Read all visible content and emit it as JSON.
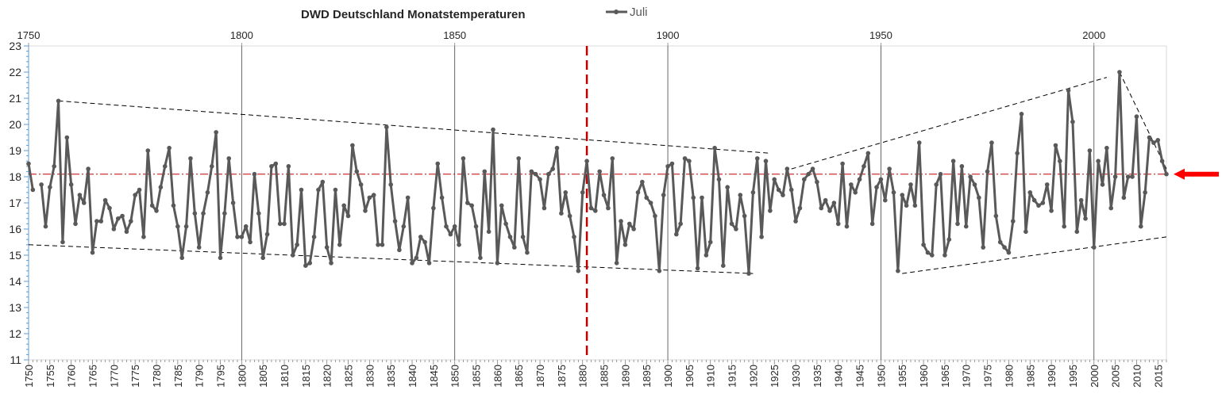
{
  "chart_data": {
    "type": "line",
    "title": "DWD Deutschland Monatstemperaturen",
    "legend": {
      "label": "Juli",
      "placement": "top"
    },
    "xlim": [
      1750,
      2017
    ],
    "ylim": [
      11,
      23
    ],
    "yticks": [
      11,
      12,
      13,
      14,
      15,
      16,
      17,
      18,
      19,
      20,
      21,
      22,
      23
    ],
    "xticks": [
      1750,
      1755,
      1760,
      1765,
      1770,
      1775,
      1780,
      1785,
      1790,
      1795,
      1800,
      1805,
      1810,
      1815,
      1820,
      1825,
      1830,
      1835,
      1840,
      1845,
      1850,
      1855,
      1860,
      1865,
      1870,
      1875,
      1880,
      1885,
      1890,
      1895,
      1900,
      1905,
      1910,
      1915,
      1920,
      1925,
      1930,
      1935,
      1940,
      1945,
      1950,
      1955,
      1960,
      1965,
      1970,
      1975,
      1980,
      1985,
      1990,
      1995,
      2000,
      2005,
      2010,
      2015
    ],
    "top_axis_ticks": [
      1750,
      1800,
      1850,
      1900,
      1950,
      2000
    ],
    "vertical_gridlines": [
      1800,
      1850,
      1900,
      1950,
      2000
    ],
    "series": [
      {
        "name": "Juli",
        "color": "#595959",
        "x_start": 1750,
        "values": [
          18.5,
          17.5,
          null,
          17.7,
          16.1,
          17.6,
          18.4,
          20.9,
          15.5,
          19.5,
          17.7,
          16.2,
          17.3,
          17.0,
          18.3,
          15.1,
          16.3,
          16.3,
          17.1,
          16.8,
          16.0,
          16.4,
          16.5,
          15.9,
          16.3,
          17.3,
          17.5,
          15.7,
          19.0,
          16.9,
          16.7,
          17.6,
          18.4,
          19.1,
          16.9,
          16.1,
          14.9,
          16.1,
          18.7,
          16.6,
          15.3,
          16.6,
          17.4,
          18.4,
          19.7,
          14.9,
          16.6,
          18.7,
          17.0,
          15.7,
          15.7,
          16.1,
          15.5,
          18.1,
          16.6,
          14.9,
          15.8,
          18.4,
          18.5,
          16.2,
          16.2,
          18.4,
          15.0,
          15.4,
          17.5,
          14.6,
          14.7,
          15.7,
          17.5,
          17.8,
          15.3,
          14.7,
          17.5,
          15.4,
          16.9,
          16.5,
          19.2,
          18.2,
          17.7,
          16.7,
          17.2,
          17.3,
          15.4,
          15.4,
          19.9,
          17.7,
          16.3,
          15.2,
          16.1,
          17.2,
          14.7,
          14.9,
          15.7,
          15.5,
          14.7,
          16.8,
          18.5,
          17.2,
          16.1,
          15.8,
          16.1,
          15.4,
          18.7,
          17.0,
          16.9,
          16.1,
          14.9,
          18.2,
          15.9,
          19.8,
          14.7,
          16.9,
          16.2,
          15.7,
          15.3,
          18.7,
          15.7,
          15.1,
          18.2,
          18.1,
          17.9,
          16.8,
          18.1,
          18.3,
          19.1,
          16.6,
          17.4,
          16.5,
          15.7,
          14.4,
          17.4,
          18.6,
          16.8,
          16.7,
          18.2,
          17.3,
          16.8,
          18.7,
          14.7,
          16.3,
          15.4,
          16.2,
          16.0,
          17.4,
          17.8,
          17.2,
          17.0,
          16.5,
          14.4,
          17.3,
          18.4,
          18.5,
          15.8,
          16.2,
          18.7,
          18.6,
          17.2,
          14.5,
          17.2,
          15.0,
          15.5,
          19.1,
          17.9,
          14.6,
          17.6,
          16.2,
          16.0,
          17.3,
          16.5,
          14.3,
          17.4,
          18.7,
          15.7,
          18.6,
          16.7,
          17.9,
          17.5,
          17.3,
          18.3,
          17.5,
          16.3,
          16.8,
          17.9,
          18.1,
          18.3,
          17.8,
          16.8,
          17.1,
          16.7,
          17.0,
          16.2,
          18.5,
          16.1,
          17.7,
          17.4,
          17.9,
          18.4,
          18.9,
          16.2,
          17.6,
          17.9,
          17.1,
          18.3,
          17.4,
          14.4,
          17.3,
          16.9,
          17.7,
          16.9,
          19.3,
          15.4,
          15.1,
          15.0,
          17.7,
          18.1,
          15.0,
          15.6,
          18.6,
          16.2,
          18.4,
          16.1,
          18.0,
          17.7,
          17.2,
          15.3,
          18.2,
          19.3,
          16.5,
          15.5,
          15.3,
          15.1,
          16.3,
          18.9,
          20.4,
          15.9,
          17.4,
          17.1,
          16.9,
          17.0,
          17.7,
          16.7,
          19.2,
          18.6,
          16.1,
          21.3,
          20.1,
          15.9,
          17.1,
          16.4,
          19.0,
          15.3,
          18.6,
          17.7,
          19.1,
          16.8,
          18.0,
          22.0,
          17.2,
          18.0,
          18.0,
          20.3,
          16.1,
          17.4,
          19.5,
          19.3,
          19.4,
          18.6,
          18.1
        ]
      }
    ],
    "annotations": {
      "reference_line": {
        "y": 18.1,
        "color": "#c00000",
        "style": "dash-dot"
      },
      "vertical_marker": {
        "x": 1881,
        "color": "#c00000",
        "style": "dashed"
      },
      "arrow": {
        "y": 18.1,
        "color": "#ff0000",
        "direction": "left",
        "placement": "right"
      },
      "trend_lines": [
        {
          "from": [
            1757,
            20.9
          ],
          "to": [
            1924,
            18.9
          ]
        },
        {
          "from": [
            1750,
            15.4
          ],
          "to": [
            1920,
            14.3
          ]
        },
        {
          "from": [
            1929,
            18.3
          ],
          "to": [
            2003,
            21.8
          ]
        },
        {
          "from": [
            1955,
            14.3
          ],
          "to": [
            2017,
            15.7
          ]
        },
        {
          "from": [
            2006,
            22.0
          ],
          "to": [
            2017,
            18.3
          ]
        }
      ]
    }
  }
}
